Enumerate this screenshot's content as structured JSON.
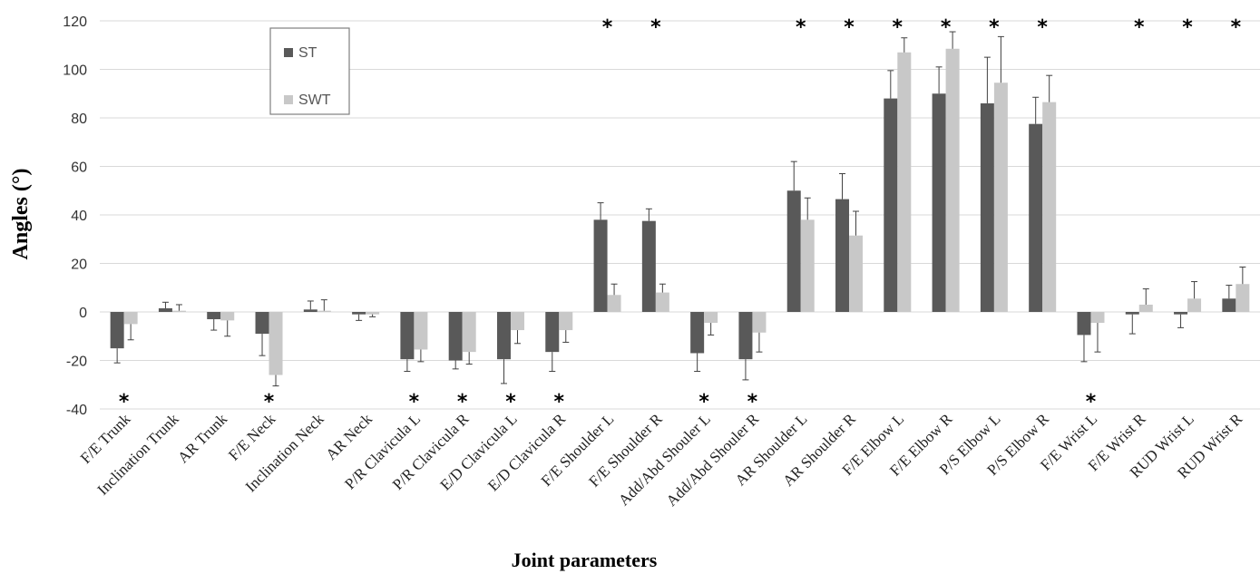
{
  "chart_data": {
    "type": "bar",
    "title": "",
    "xlabel": "Joint parameters",
    "ylabel": "Angles (°)",
    "ylim": [
      -40,
      120
    ],
    "yticks": [
      -40,
      -20,
      0,
      20,
      40,
      60,
      80,
      100,
      120
    ],
    "grid": true,
    "legend_position": "top-left",
    "categories": [
      "F/E Trunk",
      "Inclination Trunk",
      "AR Trunk",
      "F/E Neck",
      "Inclination Neck",
      "AR Neck",
      "P/R Clavicula L",
      "P/R Clavicula R",
      "E/D Clavicula L",
      "E/D Clavicula R",
      "F/E Shoulder L",
      "F/E Shoulder R",
      "Add/Abd Shouler L",
      "Add/Abd Shouler R",
      "AR Shoulder L",
      "AR Shoulder R",
      "F/E Elbow L",
      "F/E Elbow R",
      "P/S Elbow L",
      "P/S Elbow R",
      "F/E Wrist L",
      "F/E Wrist R",
      "RUD Wrist L",
      "RUD Wrist R"
    ],
    "series": [
      {
        "name": "ST",
        "color": "#595959",
        "values": [
          -15,
          1.5,
          -3,
          -9,
          1,
          -1,
          -19.5,
          -20,
          -19.5,
          -16.5,
          38,
          37.5,
          -17,
          -19.5,
          50,
          46.5,
          88,
          90,
          86,
          77.5,
          -9.5,
          -1,
          -1,
          5.5
        ],
        "errors": [
          6,
          2.5,
          4.5,
          9,
          3.5,
          2.5,
          5,
          3.5,
          10,
          8,
          7,
          5,
          7.5,
          8.5,
          12,
          10.5,
          11.5,
          11,
          19,
          11,
          11,
          8,
          5.5,
          5.5
        ]
      },
      {
        "name": "SWT",
        "color": "#c8c8c8",
        "values": [
          -5,
          0.5,
          -3.5,
          -26,
          0.5,
          -1,
          -15.5,
          -16.5,
          -7.5,
          -7.5,
          7,
          8,
          -4.5,
          -8.5,
          38,
          31.5,
          107,
          108.5,
          94.5,
          86.5,
          -4.5,
          3,
          5.5,
          11.5
        ],
        "errors": [
          6.5,
          2.5,
          6.5,
          4.5,
          4.5,
          1,
          5,
          5,
          5.5,
          5,
          4.5,
          3.5,
          5,
          8,
          9,
          10,
          6,
          7,
          19,
          11,
          12,
          6.5,
          7,
          7
        ]
      }
    ],
    "significance_marker": "*",
    "significance_top": [
      10,
      11,
      14,
      15,
      16,
      17,
      18,
      19,
      21,
      22,
      23
    ],
    "significance_bottom": [
      0,
      3,
      6,
      7,
      8,
      9,
      12,
      13,
      20
    ]
  }
}
